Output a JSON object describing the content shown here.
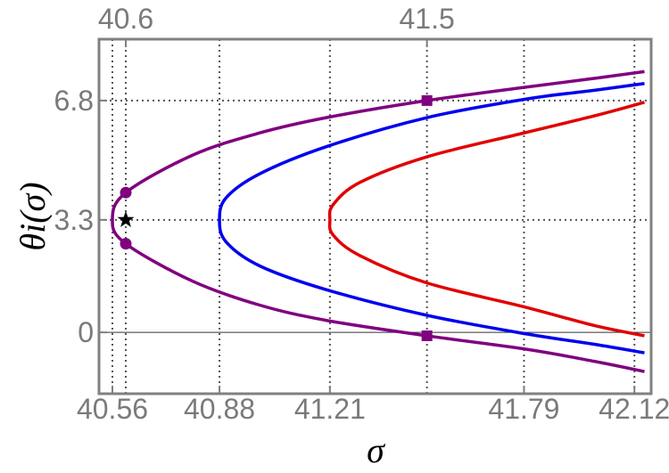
{
  "chart_data": {
    "type": "line",
    "xlabel": "σ",
    "ylabel": "θi(σ)",
    "xlim": [
      40.52,
      42.17
    ],
    "ylim": [
      -1.8,
      8.6
    ],
    "bottom_ticks": [
      "40.56",
      "40.88",
      "41.21",
      "41.79",
      "42.12"
    ],
    "bottom_tick_values": [
      40.56,
      40.88,
      41.21,
      41.79,
      42.12
    ],
    "top_ticks": [
      "40.6",
      "41.5"
    ],
    "top_tick_values": [
      40.6,
      41.5
    ],
    "y_ticks": [
      "0",
      "3.3",
      "6.8"
    ],
    "y_tick_values": [
      0,
      3.3,
      6.8
    ],
    "grid": "dotted at tick values",
    "colors": {
      "purple": "#800080",
      "blue": "#0000ee",
      "red": "#e00000",
      "frame": "#808080",
      "tick_text": "#7a7a7a"
    },
    "series": [
      {
        "color": "#800080",
        "x": [
          40.56,
          40.6,
          40.8,
          41.0,
          41.2,
          41.5,
          41.8,
          42.0,
          42.15
        ],
        "y_upper": [
          3.3,
          4.1,
          5.2,
          5.85,
          6.3,
          6.8,
          7.2,
          7.45,
          7.65
        ],
        "y_lower": [
          3.3,
          2.6,
          1.5,
          0.8,
          0.35,
          -0.1,
          -0.5,
          -0.85,
          -1.15
        ]
      },
      {
        "color": "#0000ee",
        "x": [
          40.88,
          40.9,
          41.0,
          41.2,
          41.5,
          41.8,
          42.0,
          42.15
        ],
        "y_upper": [
          3.3,
          3.95,
          4.65,
          5.45,
          6.3,
          6.85,
          7.1,
          7.3
        ],
        "y_lower": [
          3.3,
          2.65,
          1.95,
          1.25,
          0.5,
          -0.05,
          -0.35,
          -0.6
        ]
      },
      {
        "color": "#e00000",
        "x": [
          41.21,
          41.22,
          41.3,
          41.5,
          41.79,
          42.0,
          42.15
        ],
        "y_upper": [
          3.3,
          3.75,
          4.4,
          5.15,
          5.85,
          6.35,
          6.75
        ],
        "y_lower": [
          3.3,
          2.85,
          2.25,
          1.45,
          0.75,
          0.2,
          -0.1
        ]
      }
    ],
    "markers": [
      {
        "shape": "circle",
        "color": "#800080",
        "x": 40.6,
        "y": 4.1
      },
      {
        "shape": "circle",
        "color": "#800080",
        "x": 40.6,
        "y": 2.6
      },
      {
        "shape": "star",
        "color": "#000000",
        "x": 40.6,
        "y": 3.3
      },
      {
        "shape": "square",
        "color": "#800080",
        "x": 41.5,
        "y": 6.8
      },
      {
        "shape": "square",
        "color": "#800080",
        "x": 41.5,
        "y": -0.1
      }
    ]
  }
}
